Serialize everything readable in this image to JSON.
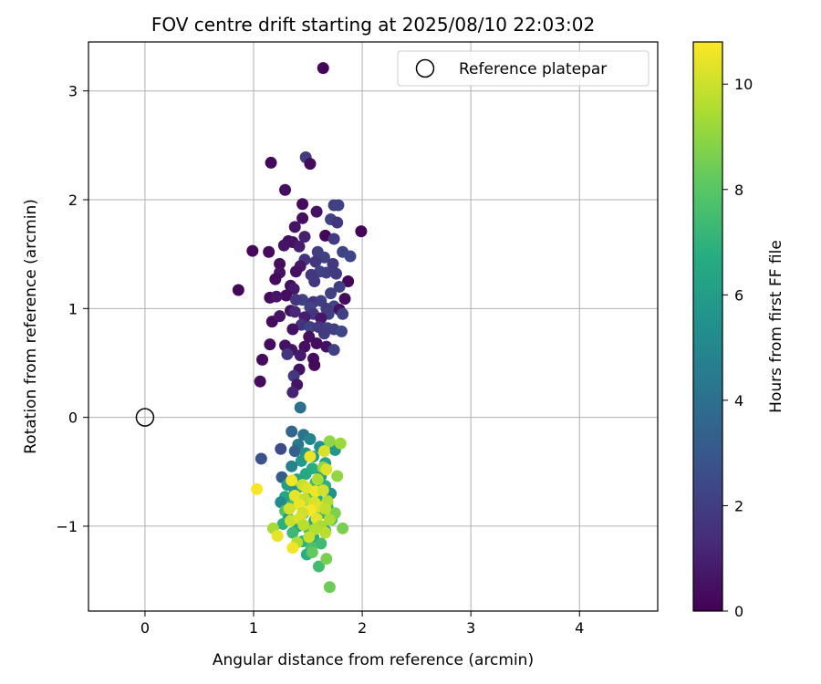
{
  "chart_data": {
    "type": "scatter",
    "title": "FOV centre drift starting at 2025/08/10 22:03:02",
    "xlabel": "Angular distance from reference (arcmin)",
    "ylabel": "Rotation from reference (arcmin)",
    "xlim": [
      -0.52,
      4.72
    ],
    "ylim": [
      -1.78,
      3.45
    ],
    "xticks": [
      0,
      1,
      2,
      3,
      4
    ],
    "yticks": [
      -1,
      0,
      1,
      2,
      3
    ],
    "grid": true,
    "legend": {
      "position": "upper right",
      "entries": [
        "Reference platepar"
      ]
    },
    "reference_point": {
      "label": "Reference platepar",
      "x": 0,
      "y": 0
    },
    "colorbar": {
      "label": "Hours from first FF file",
      "colormap": "viridis",
      "range": [
        0,
        10.8
      ],
      "ticks": [
        0,
        2,
        4,
        6,
        8,
        10
      ]
    },
    "series": [
      {
        "marker": "filled circle",
        "points": [
          [
            1.64,
            3.21,
            0.15
          ],
          [
            1.48,
            2.39,
            1.9
          ],
          [
            1.16,
            2.34,
            0.2
          ],
          [
            1.52,
            2.33,
            0.3
          ],
          [
            1.29,
            2.09,
            0.4
          ],
          [
            1.45,
            1.96,
            0.3
          ],
          [
            1.74,
            1.95,
            2.0
          ],
          [
            1.78,
            1.95,
            2.1
          ],
          [
            1.58,
            1.89,
            0.5
          ],
          [
            1.45,
            1.83,
            0.4
          ],
          [
            1.71,
            1.82,
            2.2
          ],
          [
            1.77,
            1.79,
            1.8
          ],
          [
            1.38,
            1.75,
            0.6
          ],
          [
            1.66,
            1.67,
            0.2
          ],
          [
            1.99,
            1.71,
            0.1
          ],
          [
            1.32,
            1.62,
            0.3
          ],
          [
            1.36,
            1.61,
            0.5
          ],
          [
            1.47,
            1.66,
            1.0
          ],
          [
            1.74,
            1.64,
            1.9
          ],
          [
            1.28,
            1.58,
            0.6
          ],
          [
            1.42,
            1.57,
            0.9
          ],
          [
            0.99,
            1.53,
            0.2
          ],
          [
            1.14,
            1.52,
            0.3
          ],
          [
            1.59,
            1.52,
            2.0
          ],
          [
            1.65,
            1.47,
            2.1
          ],
          [
            1.82,
            1.52,
            2.2
          ],
          [
            1.89,
            1.48,
            2.3
          ],
          [
            1.47,
            1.45,
            1.6
          ],
          [
            1.57,
            1.43,
            1.7
          ],
          [
            1.73,
            1.41,
            1.8
          ],
          [
            1.24,
            1.41,
            0.4
          ],
          [
            1.43,
            1.39,
            0.7
          ],
          [
            1.39,
            1.34,
            0.5
          ],
          [
            1.24,
            1.33,
            0.6
          ],
          [
            1.61,
            1.34,
            2.2
          ],
          [
            1.67,
            1.33,
            2.0
          ],
          [
            1.76,
            1.32,
            1.9
          ],
          [
            1.53,
            1.31,
            1.7
          ],
          [
            1.2,
            1.27,
            0.3
          ],
          [
            1.56,
            1.25,
            1.8
          ],
          [
            1.87,
            1.25,
            0.2
          ],
          [
            1.34,
            1.21,
            0.4
          ],
          [
            1.79,
            1.2,
            2.1
          ],
          [
            0.86,
            1.17,
            0.2
          ],
          [
            1.37,
            1.18,
            0.8
          ],
          [
            1.71,
            1.14,
            2.0
          ],
          [
            1.15,
            1.1,
            0.3
          ],
          [
            1.3,
            1.12,
            0.4
          ],
          [
            1.45,
            1.08,
            2.1
          ],
          [
            1.55,
            1.06,
            1.6
          ],
          [
            1.62,
            1.07,
            2.0
          ],
          [
            1.84,
            1.09,
            0.3
          ],
          [
            1.21,
            1.11,
            0.7
          ],
          [
            1.39,
            1.08,
            1.8
          ],
          [
            1.52,
            1.01,
            2.2
          ],
          [
            1.74,
            1.02,
            2.3
          ],
          [
            1.67,
            1.0,
            1.9
          ],
          [
            1.79,
            0.99,
            0.5
          ],
          [
            1.34,
            0.98,
            0.4
          ],
          [
            1.38,
            0.97,
            1.2
          ],
          [
            1.55,
            0.95,
            1.7
          ],
          [
            1.69,
            0.95,
            2.0
          ],
          [
            1.82,
            0.95,
            2.1
          ],
          [
            1.17,
            0.88,
            0.3
          ],
          [
            1.24,
            0.93,
            0.6
          ],
          [
            1.47,
            0.92,
            0.9
          ],
          [
            1.62,
            0.91,
            0.7
          ],
          [
            1.44,
            0.85,
            1.6
          ],
          [
            1.36,
            0.81,
            0.5
          ],
          [
            1.52,
            0.83,
            2.2
          ],
          [
            1.6,
            0.83,
            1.8
          ],
          [
            1.68,
            0.82,
            2.1
          ],
          [
            1.74,
            0.81,
            2.0
          ],
          [
            1.81,
            0.79,
            2.3
          ],
          [
            1.65,
            0.77,
            1.9
          ],
          [
            1.51,
            0.74,
            0.4
          ],
          [
            1.15,
            0.67,
            0.3
          ],
          [
            1.29,
            0.66,
            0.5
          ],
          [
            1.35,
            0.62,
            0.6
          ],
          [
            1.47,
            0.65,
            0.4
          ],
          [
            1.58,
            0.68,
            0.3
          ],
          [
            1.67,
            0.65,
            0.5
          ],
          [
            1.74,
            0.62,
            2.1
          ],
          [
            1.31,
            0.58,
            1.7
          ],
          [
            1.43,
            0.57,
            0.8
          ],
          [
            1.55,
            0.54,
            0.4
          ],
          [
            1.08,
            0.53,
            0.3
          ],
          [
            1.56,
            0.48,
            0.2
          ],
          [
            1.42,
            0.44,
            0.5
          ],
          [
            1.37,
            0.38,
            1.8
          ],
          [
            1.06,
            0.33,
            0.3
          ],
          [
            1.4,
            0.3,
            0.6
          ],
          [
            1.36,
            0.23,
            1.1
          ],
          [
            1.43,
            0.09,
            4.0
          ],
          [
            1.35,
            -0.13,
            3.6
          ],
          [
            1.46,
            -0.16,
            4.2
          ],
          [
            1.52,
            -0.2,
            4.9
          ],
          [
            1.41,
            -0.25,
            4.4
          ],
          [
            1.61,
            -0.27,
            5.3
          ],
          [
            1.25,
            -0.29,
            2.5
          ],
          [
            1.38,
            -0.31,
            3.4
          ],
          [
            1.48,
            -0.33,
            5.5
          ],
          [
            1.75,
            -0.3,
            5.7
          ],
          [
            1.55,
            -0.36,
            6.0
          ],
          [
            1.44,
            -0.4,
            5.8
          ],
          [
            1.66,
            -0.42,
            6.3
          ],
          [
            1.35,
            -0.45,
            4.8
          ],
          [
            1.54,
            -0.47,
            6.8
          ],
          [
            1.07,
            -0.38,
            2.8
          ],
          [
            1.48,
            -0.52,
            6.5
          ],
          [
            1.62,
            -0.54,
            5.9
          ],
          [
            1.26,
            -0.55,
            3.2
          ],
          [
            1.4,
            -0.57,
            6.2
          ],
          [
            1.57,
            -0.6,
            7.2
          ],
          [
            1.31,
            -0.62,
            6.0
          ],
          [
            1.47,
            -0.64,
            6.6
          ],
          [
            1.66,
            -0.63,
            6.9
          ],
          [
            1.38,
            -0.68,
            5.6
          ],
          [
            1.52,
            -0.7,
            7.3
          ],
          [
            1.71,
            -0.7,
            5.5
          ],
          [
            1.29,
            -0.73,
            6.4
          ],
          [
            1.44,
            -0.76,
            6.7
          ],
          [
            1.6,
            -0.77,
            6.8
          ],
          [
            1.25,
            -0.78,
            5.2
          ],
          [
            1.36,
            -0.8,
            7.4
          ],
          [
            1.53,
            -0.82,
            7.0
          ],
          [
            1.68,
            -0.82,
            7.1
          ],
          [
            1.29,
            -0.86,
            7.8
          ],
          [
            1.46,
            -0.88,
            6.8
          ],
          [
            1.63,
            -0.88,
            7.3
          ],
          [
            1.32,
            -0.93,
            5.8
          ],
          [
            1.56,
            -0.95,
            6.4
          ],
          [
            1.72,
            -0.94,
            7.6
          ],
          [
            1.27,
            -0.98,
            6.9
          ],
          [
            1.41,
            -1.0,
            6.3
          ],
          [
            1.51,
            -1.03,
            7.0
          ],
          [
            1.66,
            -1.04,
            6.6
          ],
          [
            1.36,
            -1.06,
            7.3
          ],
          [
            1.55,
            -1.1,
            6.5
          ],
          [
            1.45,
            -1.14,
            6.9
          ],
          [
            1.62,
            -1.16,
            7.4
          ],
          [
            1.53,
            -1.2,
            7.6
          ],
          [
            1.49,
            -1.26,
            6.8
          ],
          [
            1.6,
            -1.37,
            7.5
          ],
          [
            1.7,
            -1.56,
            8.4
          ],
          [
            1.67,
            -1.3,
            8.6
          ],
          [
            1.54,
            -1.24,
            8.2
          ],
          [
            1.82,
            -1.02,
            8.6
          ],
          [
            1.75,
            -0.88,
            8.7
          ],
          [
            1.77,
            -0.54,
            9.0
          ],
          [
            1.64,
            -0.46,
            9.1
          ],
          [
            1.7,
            -0.22,
            9.0
          ],
          [
            1.8,
            -0.24,
            9.2
          ],
          [
            1.52,
            -0.36,
            10.5
          ],
          [
            1.65,
            -0.31,
            10.2
          ],
          [
            1.67,
            -0.48,
            10.3
          ],
          [
            1.59,
            -0.57,
            9.5
          ],
          [
            1.45,
            -0.62,
            9.9
          ],
          [
            1.35,
            -0.58,
            10.6
          ],
          [
            1.03,
            -0.66,
            10.7
          ],
          [
            1.49,
            -0.65,
            10.3
          ],
          [
            1.57,
            -0.68,
            10.6
          ],
          [
            1.64,
            -0.67,
            10.1
          ],
          [
            1.38,
            -0.72,
            10.4
          ],
          [
            1.47,
            -0.75,
            9.8
          ],
          [
            1.56,
            -0.78,
            10.2
          ],
          [
            1.68,
            -0.77,
            9.6
          ],
          [
            1.42,
            -0.8,
            10.5
          ],
          [
            1.6,
            -0.82,
            10.3
          ],
          [
            1.33,
            -0.84,
            10.1
          ],
          [
            1.52,
            -0.85,
            10.7
          ],
          [
            1.66,
            -0.84,
            9.8
          ],
          [
            1.45,
            -0.88,
            10.0
          ],
          [
            1.58,
            -0.93,
            10.4
          ],
          [
            1.34,
            -0.95,
            9.9
          ],
          [
            1.42,
            -0.93,
            10.2
          ],
          [
            1.7,
            -0.94,
            9.5
          ],
          [
            1.46,
            -0.99,
            9.7
          ],
          [
            1.62,
            -1.0,
            9.4
          ],
          [
            1.18,
            -1.02,
            9.4
          ],
          [
            1.56,
            -1.03,
            9.6
          ],
          [
            1.66,
            -1.06,
            9.7
          ],
          [
            1.22,
            -1.09,
            10.4
          ],
          [
            1.51,
            -1.1,
            9.9
          ],
          [
            1.4,
            -1.15,
            9.6
          ],
          [
            1.36,
            -1.2,
            10.6
          ]
        ]
      }
    ]
  }
}
